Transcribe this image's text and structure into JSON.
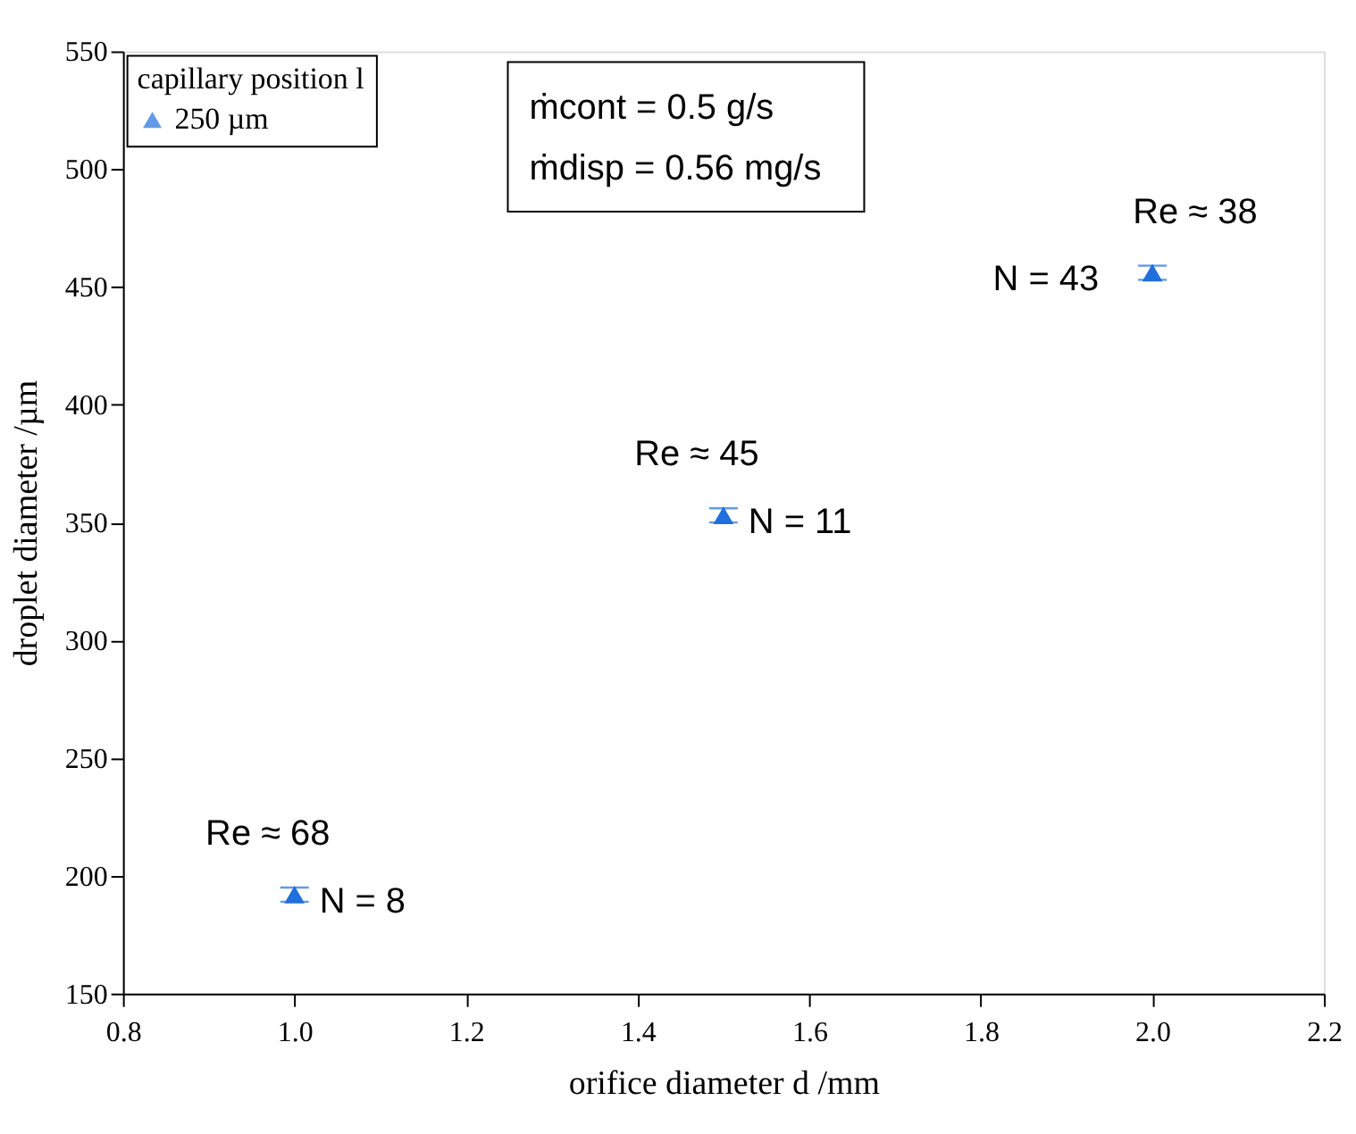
{
  "chart_data": {
    "type": "scatter",
    "xlabel": "orifice diameter d /mm",
    "ylabel": "droplet diameter /µm",
    "legend_title": "capillary position l",
    "x": [
      1.0,
      1.5,
      2.0
    ],
    "series": [
      {
        "name": "250 µm",
        "color": "#1f6fdc",
        "values": [
          192,
          353,
          456
        ],
        "errors": [
          3,
          3,
          3
        ]
      }
    ],
    "xlim": [
      0.8,
      2.2
    ],
    "xticks": [
      0.8,
      {
        "value": 1.0,
        "label": "1.0"
      },
      1.2,
      1.4,
      1.6,
      1.8,
      {
        "value": 2.0,
        "label": "2.0"
      },
      2.2
    ],
    "ylim": [
      150,
      550
    ],
    "yticks": [
      150,
      200,
      250,
      300,
      350,
      400,
      450,
      500,
      550
    ],
    "marker": "triangle",
    "grid": false,
    "legend": "top left",
    "annotations": [
      "ṁcont = 0.5 g/s",
      "ṁdisp = 0.56 mg/s",
      {
        "text": "Re ≈ 68",
        "x": 1.0,
        "y": 192
      },
      {
        "text": "N = 8",
        "x": 1.0,
        "y": 192
      },
      {
        "text": "Re ≈ 45",
        "x": 1.5,
        "y": 353
      },
      {
        "text": "N = 11",
        "x": 1.5,
        "y": 353
      },
      {
        "text": "Re ≈ 38",
        "x": 2.0,
        "y": 456
      },
      {
        "text": "N = 43",
        "x": 2.0,
        "y": 456
      }
    ]
  }
}
